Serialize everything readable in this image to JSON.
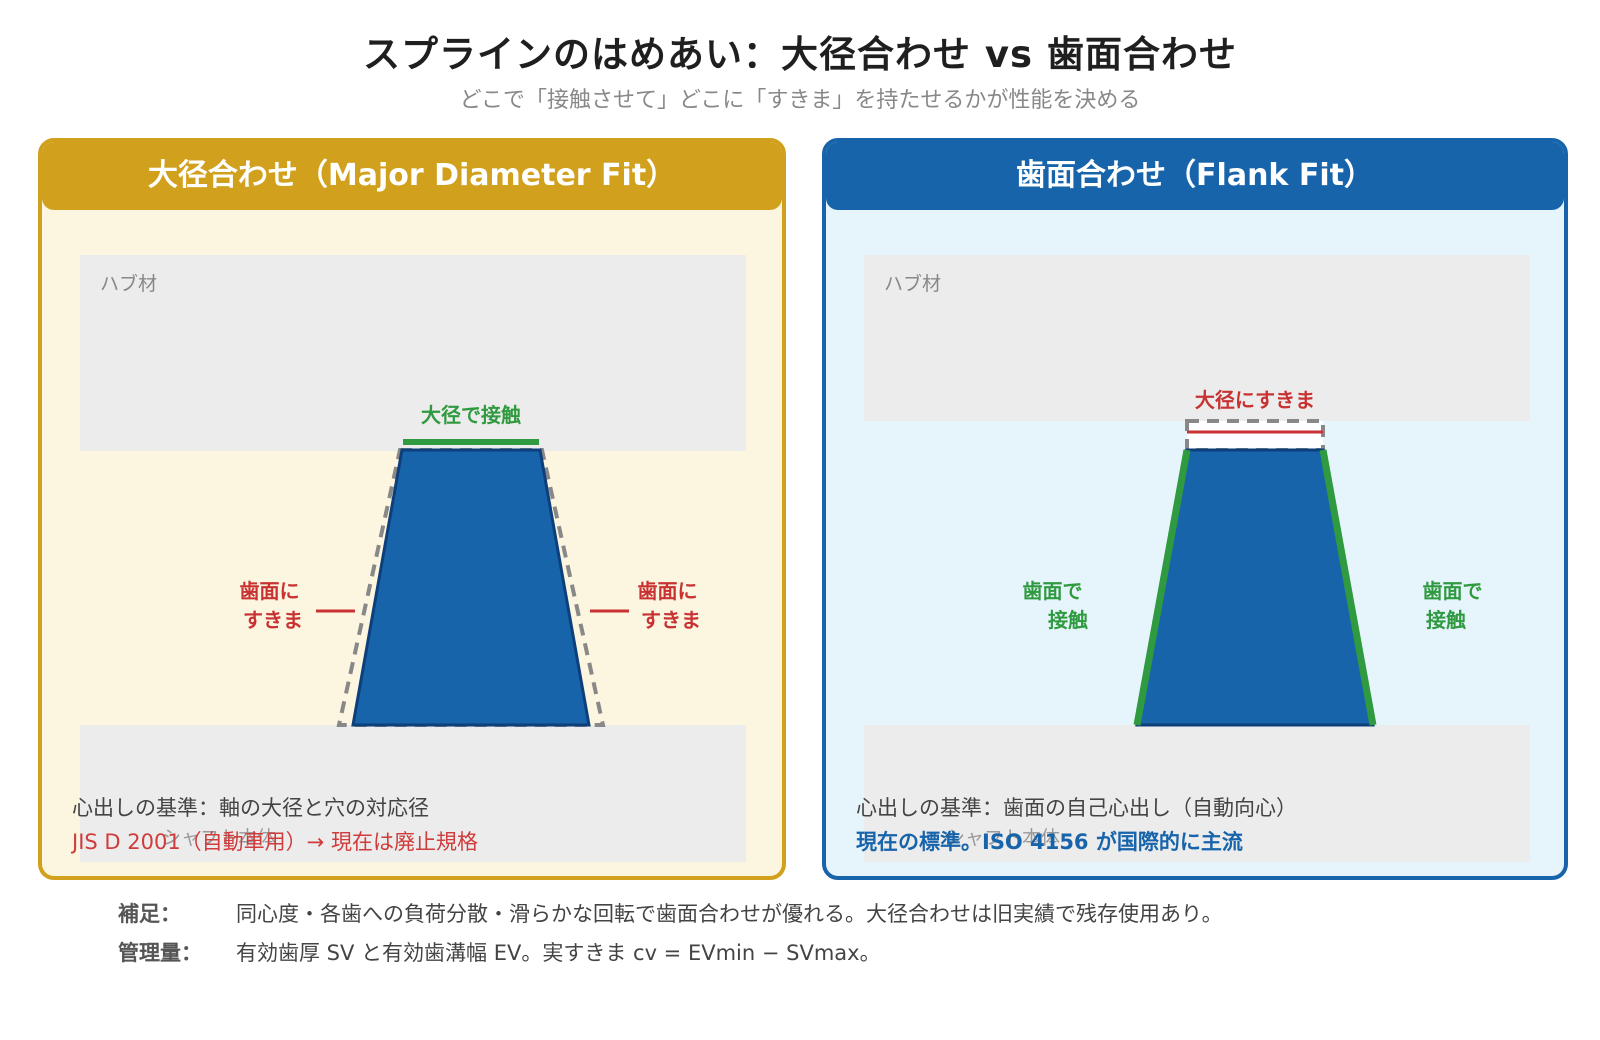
{
  "title": "スプラインのはめあい：大径合わせ vs 歯面合わせ",
  "subtitle": "どこで「接触させて」どこに「すきま」を持たせるかが性能を決める",
  "colors": {
    "major_accent": "#d1a01d",
    "flank_accent": "#1864ab",
    "contact": "#2f9a3f",
    "clearance": "#c83232",
    "tooth": "#1864ab",
    "material": "#ececec"
  },
  "major_panel": {
    "header": "大径合わせ（Major Diameter Fit）",
    "hub_label": "ハブ材",
    "shaft_label": "シャフト本体",
    "top_label": "大径で接触",
    "flank_left_label": [
      "歯面に",
      "すきま"
    ],
    "flank_right_label": [
      "歯面に",
      "すきま"
    ],
    "centering_note": "心出しの基準：軸の大径と穴の対応径",
    "status_note": "JIS D 2001（自動車用）→ 現在は廃止規格"
  },
  "flank_panel": {
    "header": "歯面合わせ（Flank Fit）",
    "hub_label": "ハブ材",
    "shaft_label": "シャフト本体",
    "top_label": "大径にすきま",
    "flank_left_label": [
      "歯面で",
      "接触"
    ],
    "flank_right_label": [
      "歯面で",
      "接触"
    ],
    "centering_note": "心出しの基準：歯面の自己心出し（自動向心）",
    "status_note": "現在の標準。ISO 4156 が国際的に主流"
  },
  "footer": {
    "supplement_label": "補足：",
    "supplement_text": "同心度・各歯への負荷分散・滑らかな回転で歯面合わせが優れる。大径合わせは旧実績で残存使用あり。",
    "control_label": "管理量：",
    "control_text": "有効歯厚 SV と有効歯溝幅 EV。実すきま cv = EVmin − SVmax。"
  }
}
